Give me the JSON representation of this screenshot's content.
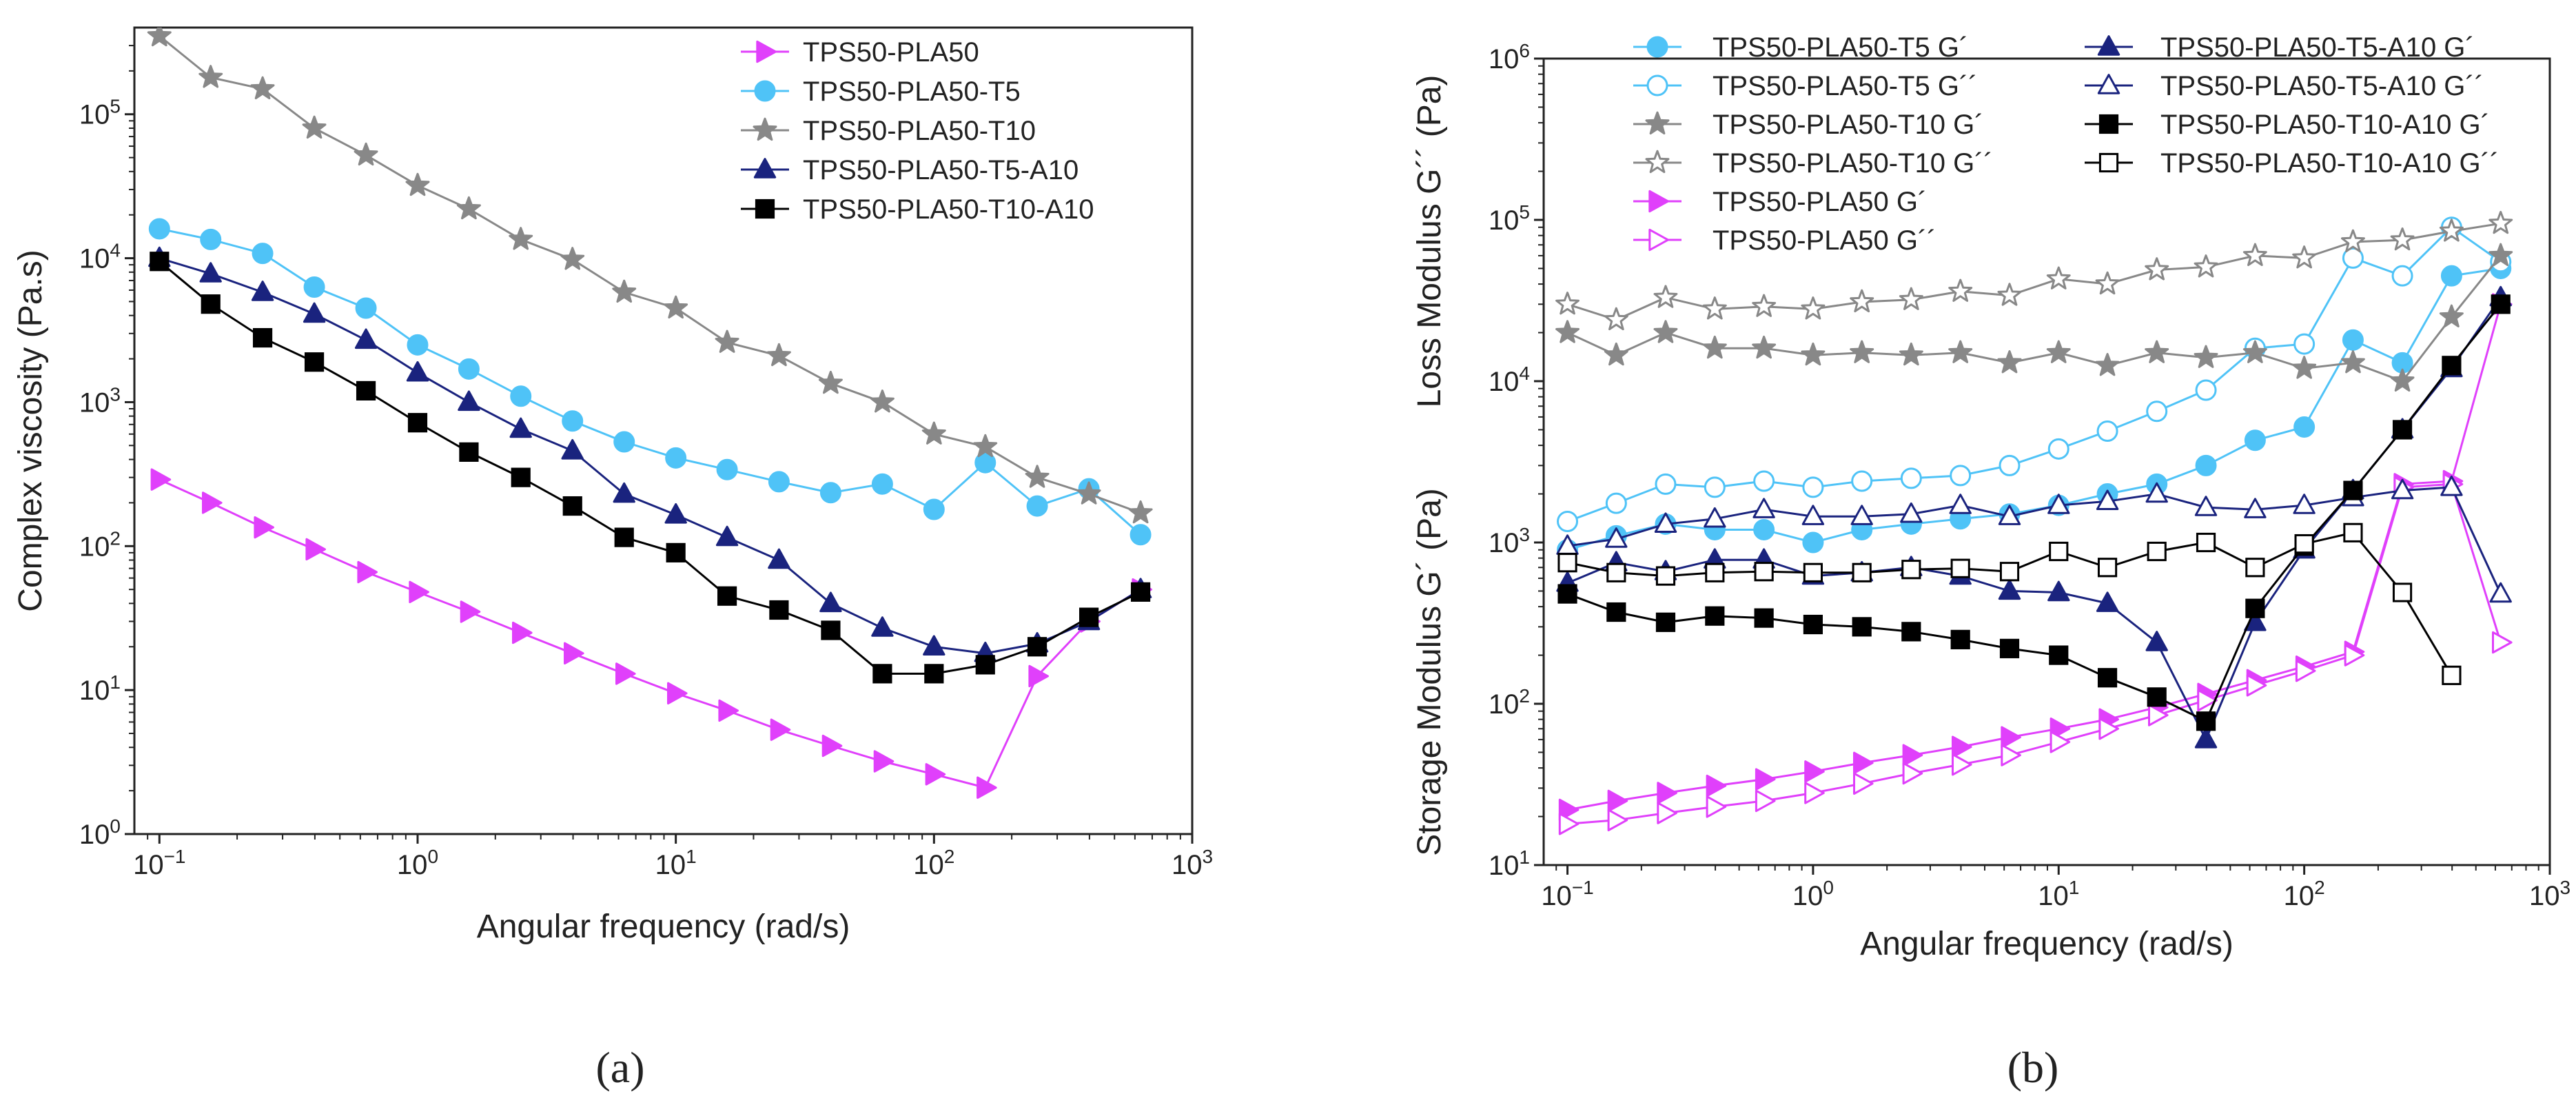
{
  "chart_data": [
    {
      "type": "line",
      "panel_label": "(a)",
      "xlabel": "Angular frequency (rad/s)",
      "ylabel": "Complex viscosity (Pa.s)",
      "xscale": "log",
      "yscale": "log",
      "xlim": [
        0.08,
        1000
      ],
      "ylim": [
        1,
        400000
      ],
      "xticks": [
        0.1,
        1,
        10,
        100,
        1000
      ],
      "xtick_labels": [
        {
          "b": "10",
          "e": "−1"
        },
        {
          "b": "10",
          "e": "0"
        },
        {
          "b": "10",
          "e": "1"
        },
        {
          "b": "10",
          "e": "2"
        },
        {
          "b": "10",
          "e": "3"
        }
      ],
      "yticks": [
        1,
        10,
        100,
        1000,
        10000,
        100000
      ],
      "ytick_labels": [
        {
          "b": "10",
          "e": "0"
        },
        {
          "b": "10",
          "e": "1"
        },
        {
          "b": "10",
          "e": "2"
        },
        {
          "b": "10",
          "e": "3"
        },
        {
          "b": "10",
          "e": "4"
        },
        {
          "b": "10",
          "e": "5"
        }
      ],
      "legend_position": "top-right",
      "x": [
        0.1,
        0.158,
        0.251,
        0.398,
        0.631,
        1.0,
        1.58,
        2.51,
        3.98,
        6.31,
        10.0,
        15.8,
        25.1,
        39.8,
        63.1,
        100,
        158,
        251,
        398,
        631
      ],
      "series": [
        {
          "name": "TPS50-PLA50",
          "color": "#e040fb",
          "marker": "triangle-right",
          "filled": true,
          "values": [
            290,
            200,
            135,
            95,
            66,
            48,
            35,
            25,
            18,
            13,
            9.5,
            7.2,
            5.3,
            4.1,
            3.2,
            2.6,
            2.1,
            12.5,
            30,
            50
          ]
        },
        {
          "name": "TPS50-PLA50-T5",
          "color": "#4fc3f7",
          "marker": "circle",
          "filled": true,
          "values": [
            16000,
            13500,
            10800,
            6300,
            4500,
            2500,
            1700,
            1100,
            740,
            530,
            410,
            340,
            280,
            235,
            270,
            180,
            380,
            190,
            250,
            120
          ]
        },
        {
          "name": "TPS50-PLA50-T10",
          "color": "#888888",
          "marker": "star",
          "filled": true,
          "values": [
            350000,
            180000,
            150000,
            80000,
            52000,
            32000,
            22000,
            13500,
            9800,
            5800,
            4500,
            2600,
            2100,
            1350,
            1000,
            600,
            490,
            300,
            230,
            170
          ]
        },
        {
          "name": "TPS50-PLA50-T5-A10",
          "color": "#1a237e",
          "marker": "triangle-up",
          "filled": true,
          "values": [
            10000,
            7800,
            5800,
            4100,
            2700,
            1600,
            1000,
            650,
            460,
            230,
            165,
            115,
            80,
            40,
            27,
            20,
            18,
            21,
            30,
            50
          ]
        },
        {
          "name": "TPS50-PLA50-T10-A10",
          "color": "#000000",
          "marker": "square",
          "filled": true,
          "values": [
            9500,
            4800,
            2800,
            1900,
            1200,
            720,
            450,
            300,
            190,
            115,
            90,
            45,
            36,
            26,
            13,
            13,
            15,
            20,
            32,
            48
          ]
        }
      ]
    },
    {
      "type": "line",
      "panel_label": "(b)",
      "xlabel": "Angular frequency (rad/s)",
      "ylabel_upper": "Loss Modulus G´´ (Pa)",
      "ylabel_lower": "Storage Modulus G´ (Pa)",
      "xscale": "log",
      "yscale": "log",
      "xlim": [
        0.08,
        1000
      ],
      "ylim": [
        10,
        1000000
      ],
      "xticks": [
        0.1,
        1,
        10,
        100,
        1000
      ],
      "xtick_labels": [
        {
          "b": "10",
          "e": "−1"
        },
        {
          "b": "10",
          "e": "0"
        },
        {
          "b": "10",
          "e": "1"
        },
        {
          "b": "10",
          "e": "2"
        },
        {
          "b": "10",
          "e": "3"
        }
      ],
      "yticks": [
        10,
        100,
        1000,
        10000,
        100000,
        1000000
      ],
      "ytick_labels": [
        {
          "b": "10",
          "e": "1"
        },
        {
          "b": "10",
          "e": "2"
        },
        {
          "b": "10",
          "e": "3"
        },
        {
          "b": "10",
          "e": "4"
        },
        {
          "b": "10",
          "e": "5"
        },
        {
          "b": "10",
          "e": "6"
        }
      ],
      "legend_position": "top",
      "x": [
        0.1,
        0.158,
        0.251,
        0.398,
        0.631,
        1.0,
        1.58,
        2.51,
        3.98,
        6.31,
        10.0,
        15.8,
        25.1,
        39.8,
        63.1,
        100,
        158,
        251,
        398,
        631
      ],
      "series": [
        {
          "name": "TPS50-PLA50-T5 G´",
          "color": "#4fc3f7",
          "marker": "circle",
          "filled": true,
          "values": [
            900,
            1100,
            1300,
            1200,
            1200,
            1000,
            1200,
            1300,
            1400,
            1500,
            1700,
            2000,
            2300,
            3000,
            4300,
            5200,
            18000,
            13000,
            45000,
            50000
          ]
        },
        {
          "name": "TPS50-PLA50-T5 G´´",
          "color": "#4fc3f7",
          "marker": "circle",
          "filled": false,
          "values": [
            1350,
            1750,
            2300,
            2200,
            2400,
            2200,
            2400,
            2500,
            2600,
            3000,
            3800,
            4900,
            6500,
            8800,
            16000,
            17000,
            58000,
            45000,
            90000,
            55000
          ]
        },
        {
          "name": "TPS50-PLA50-T10  G´",
          "color": "#888888",
          "marker": "star",
          "filled": true,
          "values": [
            20000,
            14500,
            20000,
            16000,
            16000,
            14500,
            15000,
            14500,
            15000,
            13000,
            15000,
            12500,
            15000,
            14000,
            15000,
            12000,
            13000,
            10000,
            25000,
            60000
          ]
        },
        {
          "name": "TPS50-PLA50-T10  G´´",
          "color": "#888888",
          "marker": "star",
          "filled": false,
          "values": [
            30000,
            24000,
            33000,
            28000,
            29000,
            28000,
            31000,
            32000,
            36000,
            34000,
            43000,
            40000,
            49000,
            51000,
            60000,
            58000,
            73000,
            75000,
            85000,
            95000
          ]
        },
        {
          "name": "TPS50-PLA50 G´",
          "color": "#e040fb",
          "marker": "triangle-right",
          "filled": true,
          "values": [
            22,
            25,
            28,
            31,
            34,
            38,
            43,
            48,
            54,
            62,
            70,
            80,
            95,
            115,
            140,
            170,
            210,
            2300,
            2400,
            30000
          ]
        },
        {
          "name": "TPS50-PLA50 G´´",
          "color": "#e040fb",
          "marker": "triangle-right",
          "filled": false,
          "values": [
            18,
            19,
            21,
            23,
            25,
            28,
            32,
            37,
            42,
            48,
            58,
            70,
            85,
            105,
            130,
            160,
            200,
            2200,
            2300,
            240
          ]
        },
        {
          "name": "TPS50-PLA50-T5-A10  G´",
          "color": "#1a237e",
          "marker": "triangle-up",
          "filled": true,
          "values": [
            560,
            750,
            660,
            780,
            780,
            620,
            650,
            700,
            620,
            500,
            490,
            420,
            240,
            60,
            320,
            900,
            2100,
            5000,
            12000,
            33000
          ]
        },
        {
          "name": "TPS50-PLA50-T5-A10  G´´",
          "color": "#1a237e",
          "marker": "triangle-up",
          "filled": false,
          "values": [
            950,
            1050,
            1300,
            1400,
            1600,
            1450,
            1450,
            1500,
            1700,
            1450,
            1700,
            1800,
            2000,
            1650,
            1600,
            1700,
            1900,
            2100,
            2200,
            480
          ]
        },
        {
          "name": "TPS50-PLA50-T10-A10  G´",
          "color": "#000000",
          "marker": "square",
          "filled": true,
          "values": [
            480,
            370,
            320,
            350,
            340,
            310,
            300,
            280,
            250,
            220,
            200,
            145,
            110,
            78,
            390,
            950,
            2100,
            5000,
            12500,
            30000
          ]
        },
        {
          "name": "TPS50-PLA50-T10-A10  G´´",
          "color": "#000000",
          "marker": "square",
          "filled": false,
          "values": [
            750,
            650,
            620,
            650,
            660,
            650,
            650,
            680,
            690,
            660,
            880,
            700,
            880,
            1000,
            700,
            980,
            1150,
            490,
            150,
            null
          ]
        }
      ]
    }
  ]
}
